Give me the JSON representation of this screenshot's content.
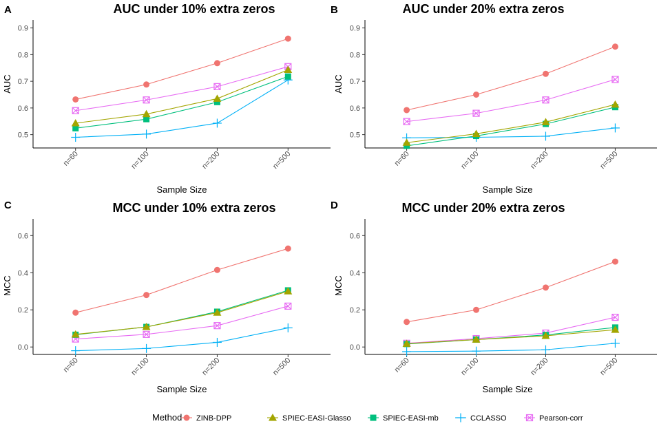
{
  "colors": {
    "ZINB-DPP": "#F07470",
    "SPIEC-EASI-Glasso": "#A3A500",
    "SPIEC-EASI-mb": "#00BF7D",
    "CCLASSO": "#00B0F6",
    "Pearson-corr": "#E76BF3"
  },
  "legend": {
    "title": "Method",
    "position": "bottom",
    "entries": [
      {
        "name": "ZINB-DPP",
        "marker": "circle"
      },
      {
        "name": "SPIEC-EASI-Glasso",
        "marker": "triangle"
      },
      {
        "name": "SPIEC-EASI-mb",
        "marker": "square"
      },
      {
        "name": "CCLASSO",
        "marker": "plus"
      },
      {
        "name": "Pearson-corr",
        "marker": "square-x"
      }
    ]
  },
  "chart_data": [
    {
      "panel": "A",
      "type": "line",
      "title": "AUC under 10% extra zeros",
      "xlabel": "Sample Size",
      "ylabel": "AUC",
      "categories": [
        "n=60",
        "n=100",
        "n=200",
        "n=500"
      ],
      "ylim": [
        0.45,
        0.93
      ],
      "yticks": [
        0.5,
        0.6,
        0.7,
        0.8,
        0.9
      ],
      "ytick_labels": [
        "0.5",
        "0.6",
        "0.7",
        "0.8",
        "0.9"
      ],
      "series": [
        {
          "name": "ZINB-DPP",
          "values": [
            0.632,
            0.688,
            0.768,
            0.86
          ]
        },
        {
          "name": "SPIEC-EASI-Glasso",
          "values": [
            0.543,
            0.577,
            0.635,
            0.743
          ]
        },
        {
          "name": "SPIEC-EASI-mb",
          "values": [
            0.524,
            0.558,
            0.622,
            0.718
          ]
        },
        {
          "name": "CCLASSO",
          "values": [
            0.49,
            0.502,
            0.543,
            0.705
          ]
        },
        {
          "name": "Pearson-corr",
          "values": [
            0.59,
            0.63,
            0.68,
            0.755
          ]
        }
      ]
    },
    {
      "panel": "B",
      "type": "line",
      "title": "AUC under 20% extra zeros",
      "xlabel": "Sample Size",
      "ylabel": "AUC",
      "categories": [
        "n=60",
        "n=100",
        "n=200",
        "n=500"
      ],
      "ylim": [
        0.45,
        0.93
      ],
      "yticks": [
        0.5,
        0.6,
        0.7,
        0.8,
        0.9
      ],
      "ytick_labels": [
        "0.5",
        "0.6",
        "0.7",
        "0.8",
        "0.9"
      ],
      "series": [
        {
          "name": "ZINB-DPP",
          "values": [
            0.592,
            0.65,
            0.728,
            0.83
          ]
        },
        {
          "name": "SPIEC-EASI-Glasso",
          "values": [
            0.47,
            0.503,
            0.547,
            0.613
          ]
        },
        {
          "name": "SPIEC-EASI-mb",
          "values": [
            0.458,
            0.495,
            0.54,
            0.603
          ]
        },
        {
          "name": "CCLASSO",
          "values": [
            0.488,
            0.49,
            0.494,
            0.525
          ]
        },
        {
          "name": "Pearson-corr",
          "values": [
            0.549,
            0.58,
            0.63,
            0.707
          ]
        }
      ]
    },
    {
      "panel": "C",
      "type": "line",
      "title": "MCC under 10% extra zeros",
      "xlabel": "Sample Size",
      "ylabel": "MCC",
      "categories": [
        "n=60",
        "n=100",
        "n=200",
        "n=500"
      ],
      "ylim": [
        -0.04,
        0.69
      ],
      "yticks": [
        0.0,
        0.2,
        0.4,
        0.6
      ],
      "ytick_labels": [
        "0.0",
        "0.2",
        "0.4",
        "0.6"
      ],
      "series": [
        {
          "name": "ZINB-DPP",
          "values": [
            0.185,
            0.28,
            0.415,
            0.53
          ]
        },
        {
          "name": "SPIEC-EASI-Glasso",
          "values": [
            0.068,
            0.108,
            0.185,
            0.3
          ]
        },
        {
          "name": "SPIEC-EASI-mb",
          "values": [
            0.066,
            0.108,
            0.19,
            0.305
          ]
        },
        {
          "name": "CCLASSO",
          "values": [
            -0.02,
            -0.008,
            0.025,
            0.103
          ]
        },
        {
          "name": "Pearson-corr",
          "values": [
            0.043,
            0.068,
            0.115,
            0.22
          ]
        }
      ]
    },
    {
      "panel": "D",
      "type": "line",
      "title": "MCC under 20% extra zeros",
      "xlabel": "Sample Size",
      "ylabel": "MCC",
      "categories": [
        "n=60",
        "n=100",
        "n=200",
        "n=500"
      ],
      "ylim": [
        -0.04,
        0.69
      ],
      "yticks": [
        0.0,
        0.2,
        0.4,
        0.6
      ],
      "ytick_labels": [
        "0.0",
        "0.2",
        "0.4",
        "0.6"
      ],
      "series": [
        {
          "name": "ZINB-DPP",
          "values": [
            0.135,
            0.2,
            0.32,
            0.46
          ]
        },
        {
          "name": "SPIEC-EASI-Glasso",
          "values": [
            0.018,
            0.04,
            0.06,
            0.093
          ]
        },
        {
          "name": "SPIEC-EASI-mb",
          "values": [
            0.016,
            0.04,
            0.065,
            0.105
          ]
        },
        {
          "name": "CCLASSO",
          "values": [
            -0.025,
            -0.022,
            -0.015,
            0.02
          ]
        },
        {
          "name": "Pearson-corr",
          "values": [
            0.02,
            0.045,
            0.075,
            0.16
          ]
        }
      ]
    }
  ]
}
